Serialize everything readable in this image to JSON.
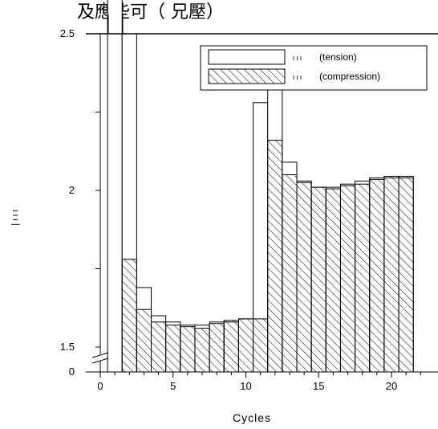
{
  "header_text": "及應些可（ 兄壓）",
  "chart_data": {
    "type": "bar",
    "xlabel": "Cycles",
    "ylabel": "| ι ι ι",
    "xticks": [
      "0",
      "5",
      "10",
      "15",
      "20"
    ],
    "yticks": [
      "0",
      "1.5",
      "2",
      "2.5"
    ],
    "xlim": [
      -0.5,
      22.5
    ],
    "ylim_upper": [
      1.5,
      2.5
    ],
    "axis_break": true,
    "legend": [
      {
        "label": "(tension)",
        "symbol": "ι ι ι",
        "pattern": "none"
      },
      {
        "label": "(compression)",
        "symbol": "ι ι ι",
        "pattern": "hatch"
      }
    ],
    "legend_position": "top-right",
    "x": [
      1,
      2,
      3,
      4,
      5,
      6,
      7,
      8,
      9,
      10,
      11,
      12,
      13,
      14,
      15,
      16,
      17,
      18,
      19,
      20,
      21
    ],
    "series": [
      {
        "name": "(tension)",
        "values": [
          3.0,
          2.5,
          1.69,
          1.6,
          1.58,
          1.57,
          1.57,
          1.58,
          1.58,
          1.59,
          2.28,
          2.38,
          2.09,
          2.03,
          2.01,
          2.01,
          2.02,
          2.03,
          2.04,
          2.04,
          2.04
        ]
      },
      {
        "name": "(compression)",
        "values": [
          0,
          1.78,
          1.62,
          1.58,
          1.57,
          1.565,
          1.56,
          1.575,
          1.585,
          1.59,
          1.59,
          2.16,
          2.05,
          2.025,
          2.01,
          2.005,
          2.015,
          2.02,
          2.035,
          2.045,
          2.045
        ]
      }
    ]
  }
}
